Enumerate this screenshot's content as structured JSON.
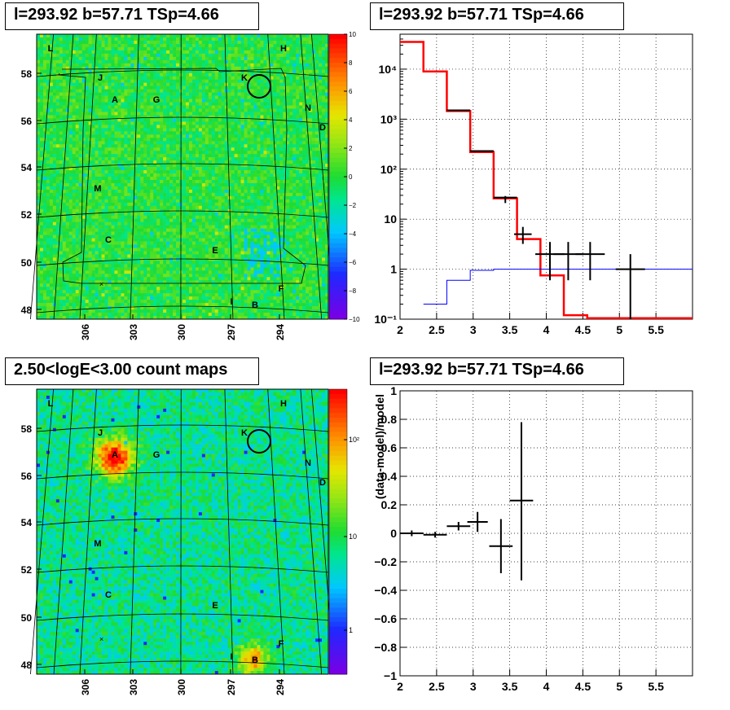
{
  "panels": {
    "ts_map": {
      "title": "l=293.92 b=57.71 TSp=4.66",
      "x_ticks": [
        "306",
        "303",
        "300",
        "297",
        "294"
      ],
      "y_ticks": [
        "58",
        "56",
        "54",
        "52",
        "50",
        "48"
      ],
      "colorbar_ticks": [
        "10",
        "8",
        "6",
        "4",
        "2",
        "0",
        "−2",
        "−4",
        "−6",
        "−8",
        "−10"
      ],
      "source_labels": [
        "L",
        "H",
        "J",
        "K",
        "A",
        "G",
        "N",
        "D",
        "M",
        "C",
        "E",
        "F",
        "I",
        "B"
      ]
    },
    "spectrum": {
      "title": "l=293.92 b=57.71 TSp=4.66"
    },
    "count_map": {
      "title": "2.50<logE<3.00 count maps",
      "x_ticks": [
        "306",
        "303",
        "300",
        "297",
        "294"
      ],
      "y_ticks": [
        "58",
        "56",
        "54",
        "52",
        "50",
        "48"
      ],
      "colorbar_ticks": [
        "10²",
        "10",
        "1"
      ],
      "source_labels": [
        "L",
        "H",
        "J",
        "K",
        "A",
        "G",
        "N",
        "D",
        "M",
        "C",
        "E",
        "F",
        "I",
        "B"
      ]
    },
    "residual": {
      "title": "l=293.92 b=57.71 TSp=4.66"
    }
  },
  "chart_data": [
    {
      "type": "heatmap",
      "title": "l=293.92 b=57.71 TSp=4.66",
      "x_ticks": [
        306,
        303,
        300,
        297,
        294
      ],
      "y_ticks": [
        58,
        56,
        54,
        52,
        50,
        48
      ],
      "colorbar_range": [
        -10,
        10
      ],
      "colormap": "rainbow"
    },
    {
      "type": "line",
      "title": "l=293.92 b=57.71 TSp=4.66",
      "xlim": [
        2,
        6
      ],
      "ylim": [
        0.1,
        50000
      ],
      "y_scale": "log",
      "x_ticks": [
        "2",
        "2.5",
        "3",
        "3.5",
        "4",
        "4.5",
        "5",
        "5.5"
      ],
      "y_ticks": [
        "10⁻¹",
        "1",
        "10",
        "10²",
        "10³",
        "10⁴"
      ],
      "grid": true,
      "series": [
        {
          "color": "#ff0000",
          "edges": [
            2,
            2.32,
            2.64,
            2.96,
            3.28,
            3.6,
            3.92,
            4.24,
            4.56,
            6
          ],
          "values": [
            35000,
            9000,
            1450,
            220,
            26,
            4,
            0.75,
            0.12,
            0.105
          ]
        },
        {
          "color": "#0000ff",
          "edges": [
            2.32,
            2.64,
            2.96,
            3.28,
            3.6,
            6
          ],
          "values": [
            0.2,
            0.6,
            0.95,
            1,
            1
          ]
        },
        {
          "color": "#000000",
          "points": [
            {
              "x": 2.48,
              "y": 9000
            },
            {
              "x": 2.8,
              "y": 1500,
              "xerr": 0.16
            },
            {
              "x": 3.12,
              "y": 230,
              "xerr": 0.16
            },
            {
              "x": 3.44,
              "y": 27,
              "xerr": 0.16,
              "ylo": 21,
              "yhi": 29
            },
            {
              "x": 3.68,
              "y": 5,
              "xerr": 0.12,
              "ylo": 3.2,
              "yhi": 7
            },
            {
              "x": 4.05,
              "y": 2,
              "xerr": 0.2,
              "ylo": 0.6,
              "yhi": 3.5
            },
            {
              "x": 4.3,
              "y": 2,
              "xerr": 0.2,
              "ylo": 0.6,
              "yhi": 3.5
            },
            {
              "x": 4.6,
              "y": 2,
              "xerr": 0.2,
              "ylo": 0.6,
              "yhi": 3.5
            },
            {
              "x": 5.15,
              "y": 1,
              "xerr": 0.2,
              "ylo": 0.1,
              "yhi": 2
            }
          ]
        }
      ]
    },
    {
      "type": "heatmap",
      "title": "2.50<logE<3.00 count maps",
      "x_ticks": [
        306,
        303,
        300,
        297,
        294
      ],
      "y_ticks": [
        58,
        56,
        54,
        52,
        50,
        48
      ],
      "colorbar_scale": "log",
      "colormap": "rainbow"
    },
    {
      "type": "scatter",
      "title": "l=293.92 b=57.71 TSp=4.66",
      "ylabel": "(data-model)/model",
      "xlim": [
        2,
        6
      ],
      "ylim": [
        -1,
        1
      ],
      "x_ticks": [
        "2",
        "2.5",
        "3",
        "3.5",
        "4",
        "4.5",
        "5",
        "5.5"
      ],
      "y_ticks": [
        "−1",
        "−0.8",
        "−0.6",
        "−0.4",
        "−0.2",
        "0",
        "0.2",
        "0.4",
        "0.6",
        "0.8",
        "1"
      ],
      "grid": true,
      "points": [
        {
          "x": 2.16,
          "y": 0.0,
          "xerr": 0.16,
          "ylo": -0.02,
          "yhi": 0.02
        },
        {
          "x": 2.48,
          "y": -0.01,
          "xerr": 0.16,
          "ylo": -0.03,
          "yhi": 0.01
        },
        {
          "x": 2.8,
          "y": 0.05,
          "xerr": 0.16,
          "ylo": 0.02,
          "yhi": 0.08
        },
        {
          "x": 3.06,
          "y": 0.08,
          "xerr": 0.14,
          "ylo": 0.01,
          "yhi": 0.15
        },
        {
          "x": 3.38,
          "y": -0.09,
          "xerr": 0.16,
          "ylo": -0.28,
          "yhi": 0.1
        },
        {
          "x": 3.66,
          "y": 0.23,
          "xerr": 0.16,
          "ylo": -0.33,
          "yhi": 0.78
        }
      ]
    }
  ]
}
